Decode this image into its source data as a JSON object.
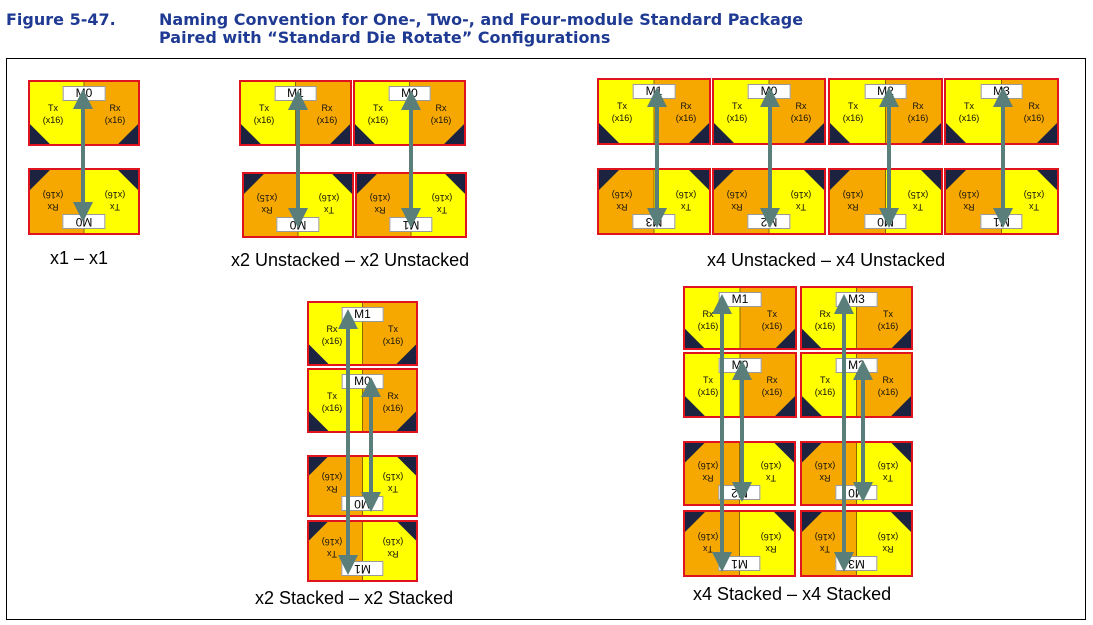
{
  "figure": {
    "label": "Figure 5-47.",
    "title_line1": "Naming Convention for One-, Two-, and Four-module Standard Package",
    "title_line2": "Paired with “Standard Die Rotate” Configurations"
  },
  "colors": {
    "yellow": "#ffff00",
    "orange": "#f7a800",
    "navy": "#1c2340",
    "border": "#e0141e",
    "arrow": "#5a7f7a",
    "title": "#1f3a93"
  },
  "configs": [
    {
      "id": "x1-x1",
      "caption": "x1 – x1",
      "dies": [
        {
          "module": "M0",
          "left_port": "Tx",
          "left_width": "(x16)",
          "right_port": "Rx",
          "right_width": "(x16)",
          "rotated": false
        },
        {
          "module": "M0",
          "left_port": "Tx",
          "left_width": "(x16)",
          "right_port": "Rx",
          "right_width": "(x16)",
          "rotated": true
        }
      ]
    },
    {
      "id": "x2-unstacked",
      "caption": "x2 Unstacked – x2 Unstacked",
      "dies": [
        {
          "module": "M1",
          "left_port": "Tx",
          "left_width": "(x16)",
          "right_port": "Rx",
          "right_width": "(x16)",
          "rotated": false
        },
        {
          "module": "M0",
          "left_port": "Tx",
          "left_width": "(x16)",
          "right_port": "Rx",
          "right_width": "(x16)",
          "rotated": false
        },
        {
          "module": "M0",
          "left_port": "Tx",
          "left_width": "(x16)",
          "right_port": "Rx",
          "right_width": "(x15)",
          "rotated": true
        },
        {
          "module": "M1",
          "left_port": "Tx",
          "left_width": "(x16)",
          "right_port": "Rx",
          "right_width": "(x16)",
          "rotated": true
        }
      ]
    },
    {
      "id": "x4-unstacked",
      "caption": "x4 Unstacked – x4 Unstacked",
      "dies": [
        {
          "module": "M1",
          "left_port": "Tx",
          "left_width": "(x16)",
          "right_port": "Rx",
          "right_width": "(x16)",
          "rotated": false
        },
        {
          "module": "M0",
          "left_port": "Tx",
          "left_width": "(x16)",
          "right_port": "Rx",
          "right_width": "(x16)",
          "rotated": false
        },
        {
          "module": "M2",
          "left_port": "Tx",
          "left_width": "(x16)",
          "right_port": "Rx",
          "right_width": "(x16)",
          "rotated": false
        },
        {
          "module": "M3",
          "left_port": "Tx",
          "left_width": "(x16)",
          "right_port": "Rx",
          "right_width": "(x16)",
          "rotated": false
        },
        {
          "module": "M3",
          "left_port": "Tx",
          "left_width": "(x16)",
          "right_port": "Rx",
          "right_width": "(x16)",
          "rotated": true
        },
        {
          "module": "M2",
          "left_port": "Tx",
          "left_width": "(x16)",
          "right_port": "Rx",
          "right_width": "(x16)",
          "rotated": true
        },
        {
          "module": "M0",
          "left_port": "Tx",
          "left_width": "(x15)",
          "right_port": "Rx",
          "right_width": "(x16)",
          "rotated": true
        },
        {
          "module": "M1",
          "left_port": "Tx",
          "left_width": "(x15)",
          "right_port": "Rx",
          "right_width": "(x16)",
          "rotated": true
        }
      ]
    },
    {
      "id": "x2-stacked",
      "caption": "x2 Stacked – x2 Stacked",
      "dies": [
        {
          "module": "M1",
          "left_port": "Rx",
          "left_width": "(x16)",
          "right_port": "Tx",
          "right_width": "(x16)",
          "rotated": false
        },
        {
          "module": "M0",
          "left_port": "Tx",
          "left_width": "(x16)",
          "right_port": "Rx",
          "right_width": "(x16)",
          "rotated": false
        },
        {
          "module": "M0",
          "left_port": "Tx",
          "left_width": "(x15)",
          "right_port": "Rx",
          "right_width": "(x16)",
          "rotated": true
        },
        {
          "module": "M1",
          "left_port": "Rx",
          "left_width": "(x16)",
          "right_port": "Tx",
          "right_width": "(x16)",
          "rotated": true
        }
      ]
    },
    {
      "id": "x4-stacked",
      "caption": "x4 Stacked – x4 Stacked",
      "dies": [
        {
          "module": "M1",
          "left_port": "Rx",
          "left_width": "(x16)",
          "right_port": "Tx",
          "right_width": "(x16)",
          "rotated": false
        },
        {
          "module": "M3",
          "left_port": "Rx",
          "left_width": "(x16)",
          "right_port": "Tx",
          "right_width": "(x16)",
          "rotated": false
        },
        {
          "module": "M0",
          "left_port": "Tx",
          "left_width": "(x16)",
          "right_port": "Rx",
          "right_width": "(x16)",
          "rotated": false
        },
        {
          "module": "M2",
          "left_port": "Tx",
          "left_width": "(x16)",
          "right_port": "Rx",
          "right_width": "(x16)",
          "rotated": false
        },
        {
          "module": "M2",
          "left_port": "Tx",
          "left_width": "(x16)",
          "right_port": "Rx",
          "right_width": "(x16)",
          "rotated": true
        },
        {
          "module": "M0",
          "left_port": "Tx",
          "left_width": "(x16)",
          "right_port": "Rx",
          "right_width": "(x16)",
          "rotated": true
        },
        {
          "module": "M1",
          "left_port": "Rx",
          "left_width": "(x16)",
          "right_port": "Tx",
          "right_width": "(x16)",
          "rotated": true
        },
        {
          "module": "M3",
          "left_port": "Rx",
          "left_width": "(x16)",
          "right_port": "Tx",
          "right_width": "(x16)",
          "rotated": true
        }
      ]
    }
  ]
}
